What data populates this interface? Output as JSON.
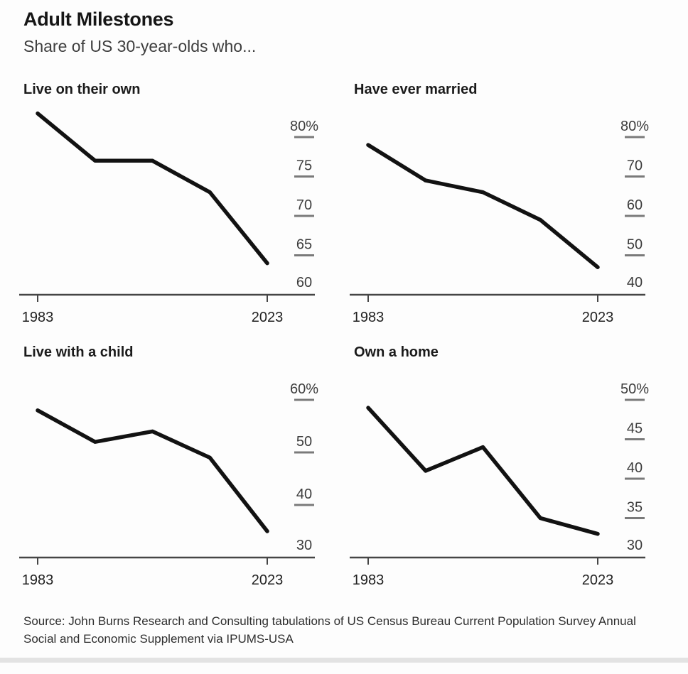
{
  "title": "Adult Milestones",
  "subtitle": "Share of US 30-year-olds who...",
  "source": "Source: John Burns Research and Consulting tabulations of US Census Bureau Current Population Survey Annual Social and Economic Supplement via IPUMS-USA",
  "colors": {
    "line": "#121212",
    "axis": "#454545",
    "tick_dash": "#7a7a7a",
    "y_label": "#3c3c3c",
    "x_label": "#222222"
  },
  "chart_data": [
    {
      "type": "line",
      "title": "Live on their own",
      "x": [
        1983,
        1993,
        2003,
        2013,
        2023
      ],
      "values": [
        83,
        77,
        77,
        73,
        64
      ],
      "ylim": [
        60,
        80
      ],
      "ytick_step": 5,
      "ytick_labels": [
        "80%",
        "75",
        "70",
        "65",
        "60"
      ],
      "x_axis_labels": [
        "1983",
        "2023"
      ],
      "axis_side": "right",
      "grid": "off",
      "legend": "none"
    },
    {
      "type": "line",
      "title": "Have ever married",
      "x": [
        1983,
        1993,
        2003,
        2013,
        2023
      ],
      "values": [
        78,
        69,
        66,
        59,
        47
      ],
      "ylim": [
        40,
        80
      ],
      "ytick_step": 10,
      "ytick_labels": [
        "80%",
        "70",
        "60",
        "50",
        "40"
      ],
      "x_axis_labels": [
        "1983",
        "2023"
      ],
      "axis_side": "right",
      "grid": "off",
      "legend": "none"
    },
    {
      "type": "line",
      "title": "Live with a child",
      "x": [
        1983,
        1993,
        2003,
        2013,
        2023
      ],
      "values": [
        58,
        52,
        54,
        49,
        35
      ],
      "ylim": [
        30,
        60
      ],
      "ytick_step": 10,
      "ytick_labels": [
        "60%",
        "50",
        "40",
        "30"
      ],
      "x_axis_labels": [
        "1983",
        "2023"
      ],
      "axis_side": "right",
      "grid": "off",
      "legend": "none"
    },
    {
      "type": "line",
      "title": "Own a home",
      "x": [
        1983,
        1993,
        2003,
        2013,
        2023
      ],
      "values": [
        49,
        41,
        44,
        35,
        33
      ],
      "ylim": [
        30,
        50
      ],
      "ytick_step": 5,
      "ytick_labels": [
        "50%",
        "45",
        "40",
        "35",
        "30"
      ],
      "x_axis_labels": [
        "1983",
        "2023"
      ],
      "axis_side": "right",
      "grid": "off",
      "legend": "none"
    }
  ]
}
